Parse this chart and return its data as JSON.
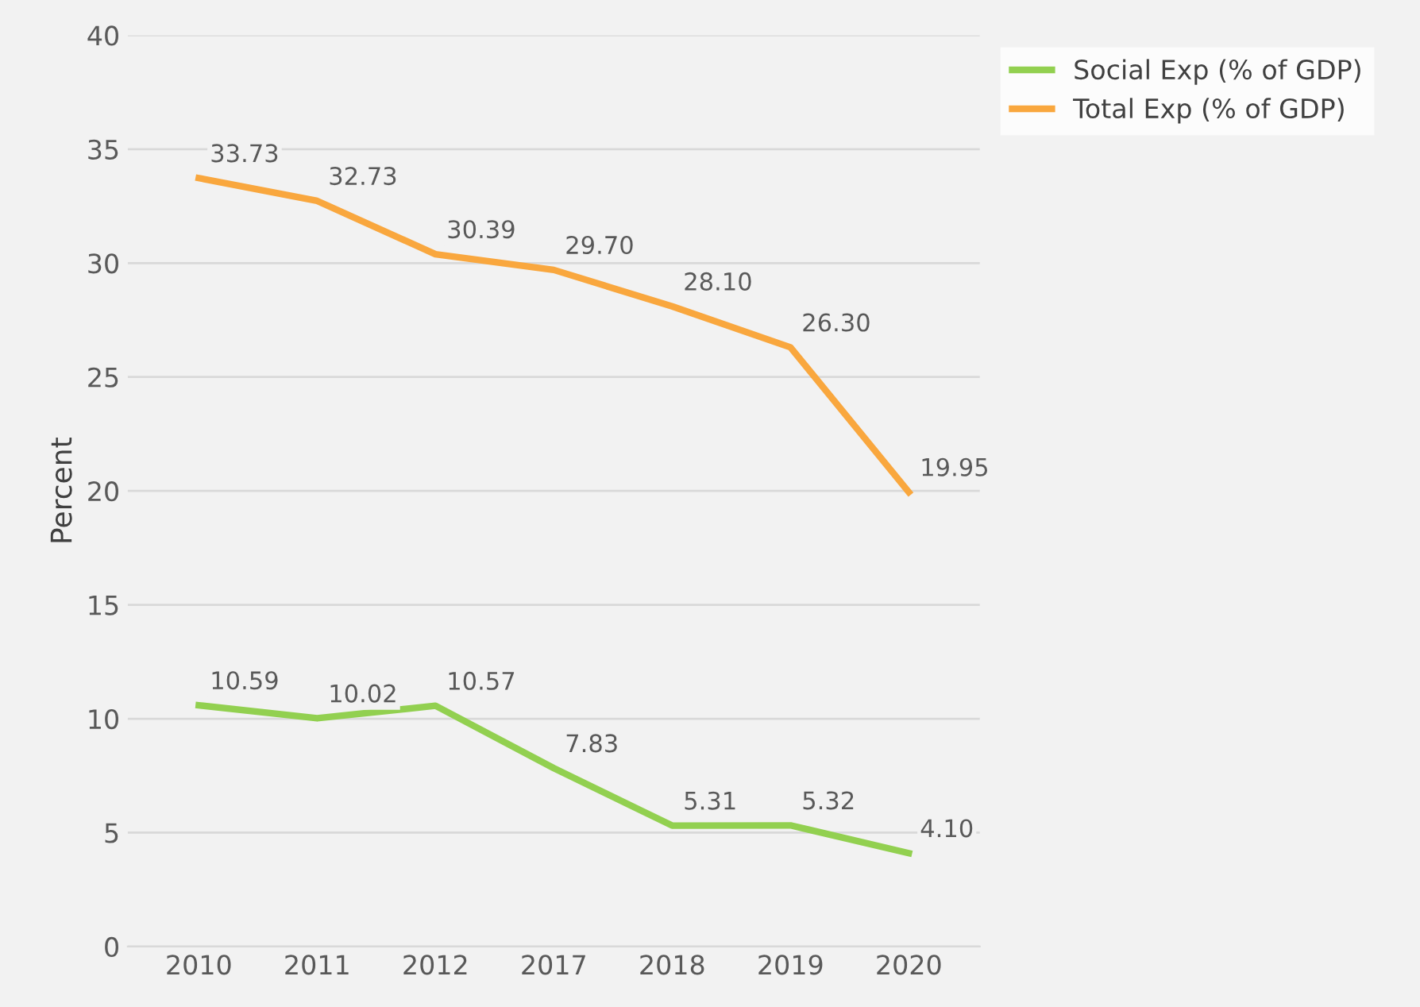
{
  "chart_data": {
    "type": "line",
    "ylabel": "Percent",
    "categories": [
      "2010",
      "2011",
      "2012",
      "2017",
      "2018",
      "2019",
      "2020"
    ],
    "series": [
      {
        "name": "Social Exp (% of GDP)",
        "color": "#92d050",
        "values": [
          10.59,
          10.02,
          10.57,
          7.83,
          5.31,
          5.32,
          4.1
        ],
        "value_labels": [
          "10.59",
          "10.02",
          "10.57",
          "7.83",
          "5.31",
          "5.32",
          "4.10"
        ]
      },
      {
        "name": "Total Exp (% of GDP)",
        "color": "#f9a73e",
        "values": [
          33.73,
          32.73,
          30.39,
          29.7,
          28.1,
          26.3,
          19.95
        ],
        "value_labels": [
          "33.73",
          "32.73",
          "30.39",
          "29.70",
          "28.10",
          "26.30",
          "19.95"
        ]
      }
    ],
    "ylim": [
      0,
      40
    ],
    "yticks": [
      0,
      5,
      10,
      15,
      20,
      25,
      30,
      35,
      40
    ],
    "grid": "y",
    "legend": "top right",
    "marker": "none",
    "line_style": "solid"
  }
}
